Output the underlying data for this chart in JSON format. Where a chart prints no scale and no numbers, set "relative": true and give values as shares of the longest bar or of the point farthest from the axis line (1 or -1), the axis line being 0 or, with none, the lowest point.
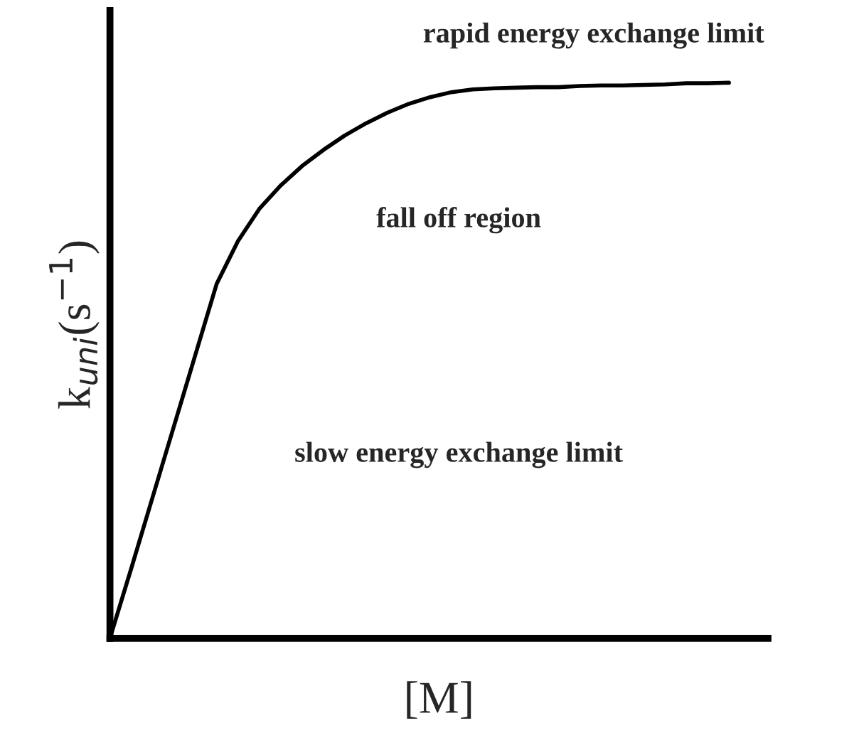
{
  "chart_data": {
    "type": "line",
    "relative": true,
    "xlabel": "[M]",
    "ylabel": "k$_{uni}$(s$^{−1}$)",
    "categories": [
      null,
      null,
      null,
      null,
      null,
      null,
      null,
      null,
      null,
      null,
      null,
      null,
      null,
      null,
      null,
      null,
      null,
      null,
      null,
      null,
      null,
      null,
      null,
      null,
      null,
      null,
      null,
      null,
      null,
      null
    ],
    "series": [
      {
        "color": "#000000",
        "values": [
          0,
          0.126,
          0.254,
          0.382,
          0.51,
          0.638,
          0.715,
          0.773,
          0.815,
          0.85,
          0.879,
          0.905,
          0.927,
          0.946,
          0.962,
          0.974,
          0.983,
          0.988,
          0.99,
          0.991,
          0.992,
          0.992,
          0.994,
          0.995,
          0.995,
          0.996,
          0.997,
          0.999,
          0.999,
          1
        ]
      }
    ],
    "annotations": [
      "rapid energy exchange limit",
      "fall off region",
      "slow energy exchange limit"
    ],
    "grid": false,
    "marker": "none",
    "line_style": "solid"
  }
}
